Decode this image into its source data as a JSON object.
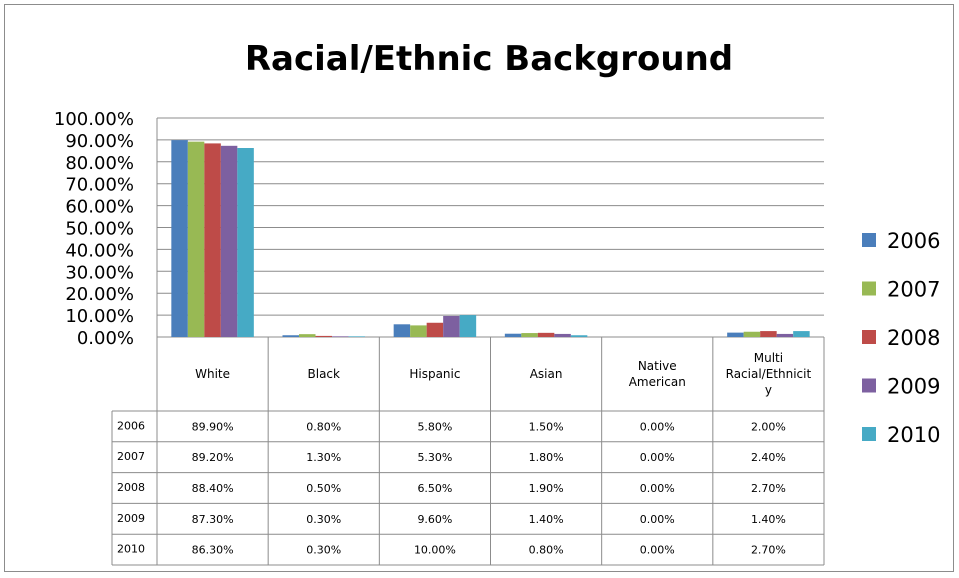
{
  "chart_data": {
    "type": "bar",
    "title": "Racial/Ethnic Background",
    "categories": [
      "White",
      "Black",
      "Hispanic",
      "Asian",
      "Native American",
      "Multi Racial/Ethnicity"
    ],
    "category_lines": [
      [
        "White"
      ],
      [
        "Black"
      ],
      [
        "Hispanic"
      ],
      [
        "Asian"
      ],
      [
        "Native",
        "American"
      ],
      [
        "Multi",
        "Racial/Ethnicit",
        "y"
      ]
    ],
    "series": [
      {
        "name": "2006",
        "color": "#4a7ebb",
        "values": [
          89.9,
          0.8,
          5.8,
          1.5,
          0.0,
          2.0
        ],
        "labels": [
          "89.90%",
          "0.80%",
          "5.80%",
          "1.50%",
          "0.00%",
          "2.00%"
        ]
      },
      {
        "name": "2007",
        "color": "#98b954",
        "values": [
          89.2,
          1.3,
          5.3,
          1.8,
          0.0,
          2.4
        ],
        "labels": [
          "89.20%",
          "1.30%",
          "5.30%",
          "1.80%",
          "0.00%",
          "2.40%"
        ]
      },
      {
        "name": "2008",
        "color": "#be4b48",
        "values": [
          88.4,
          0.5,
          6.5,
          1.9,
          0.0,
          2.7
        ],
        "labels": [
          "88.40%",
          "0.50%",
          "6.50%",
          "1.90%",
          "0.00%",
          "2.70%"
        ]
      },
      {
        "name": "2009",
        "color": "#7d60a0",
        "values": [
          87.3,
          0.3,
          9.6,
          1.4,
          0.0,
          1.4
        ],
        "labels": [
          "87.30%",
          "0.30%",
          "9.60%",
          "1.40%",
          "0.00%",
          "1.40%"
        ]
      },
      {
        "name": "2010",
        "color": "#46aac5",
        "values": [
          86.3,
          0.3,
          10.0,
          0.8,
          0.0,
          2.7
        ],
        "labels": [
          "86.30%",
          "0.30%",
          "10.00%",
          "0.80%",
          "0.00%",
          "2.70%"
        ]
      }
    ],
    "ylim": [
      0,
      100
    ],
    "yticks": [
      "0.00%",
      "10.00%",
      "20.00%",
      "30.00%",
      "40.00%",
      "50.00%",
      "60.00%",
      "70.00%",
      "80.00%",
      "90.00%",
      "100.00%"
    ],
    "grid": true,
    "legend_position": "right",
    "data_table": true
  }
}
